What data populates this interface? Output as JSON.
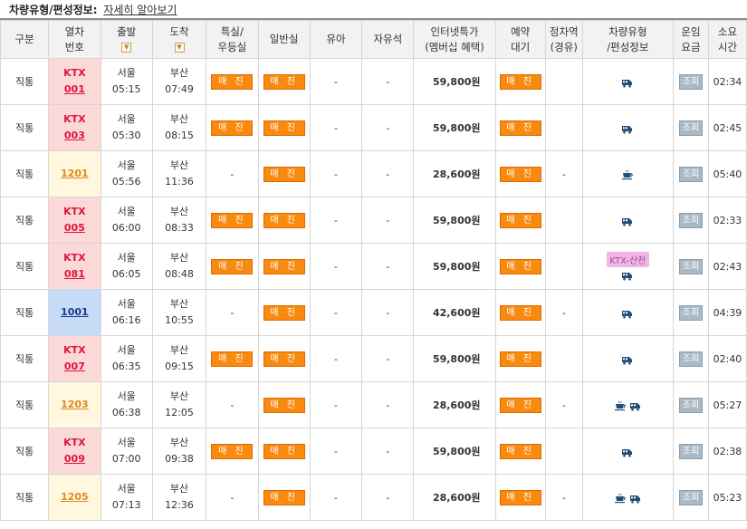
{
  "header": {
    "title": "차량유형/편성정보:",
    "detail_link": "자세히 알아보기"
  },
  "columns": {
    "gubun": "구분",
    "train_no_1": "열차",
    "train_no_2": "번호",
    "depart": "출발",
    "arrive": "도착",
    "special_1": "특실/",
    "special_2": "우등실",
    "general": "일반실",
    "infant": "유아",
    "free": "자유석",
    "internet_1": "인터넷특가",
    "internet_2": "(멤버십 혜택)",
    "reserve_1": "예약",
    "reserve_2": "대기",
    "stop_1": "정차역",
    "stop_2": "(경유)",
    "cartype_1": "차량유형",
    "cartype_2": "/편성정보",
    "fare_1": "운임",
    "fare_2": "요금",
    "time_1": "소요",
    "time_2": "시간"
  },
  "labels": {
    "sold_out": "매 진",
    "view": "조회",
    "dash": "-"
  },
  "rows": [
    {
      "type": "직통",
      "kind": "ktx",
      "prefix": "KTX",
      "no": "001",
      "dep": "서울",
      "dep_t": "05:15",
      "arr": "부산",
      "arr_t": "07:49",
      "special": "매 진",
      "general": "매 진",
      "infant": "-",
      "free": "-",
      "price": "59,800원",
      "reserve": "매 진",
      "stop": "",
      "icons": [
        "ktx-train-icon"
      ],
      "tag": "",
      "fare": "조회",
      "dur": "02:34"
    },
    {
      "type": "직통",
      "kind": "ktx",
      "prefix": "KTX",
      "no": "003",
      "dep": "서울",
      "dep_t": "05:30",
      "arr": "부산",
      "arr_t": "08:15",
      "special": "매 진",
      "general": "매 진",
      "infant": "-",
      "free": "-",
      "price": "59,800원",
      "reserve": "매 진",
      "stop": "",
      "icons": [
        "ktx-train-icon"
      ],
      "tag": "",
      "fare": "조회",
      "dur": "02:45"
    },
    {
      "type": "직통",
      "kind": "yellow",
      "prefix": "",
      "no": "1201",
      "dep": "서울",
      "dep_t": "05:56",
      "arr": "부산",
      "arr_t": "11:36",
      "special": "-",
      "general": "매 진",
      "infant": "-",
      "free": "-",
      "price": "28,600원",
      "reserve": "매 진",
      "stop": "-",
      "icons": [
        "cafe-car-icon"
      ],
      "tag": "",
      "fare": "조회",
      "dur": "05:40"
    },
    {
      "type": "직통",
      "kind": "ktx",
      "prefix": "KTX",
      "no": "005",
      "dep": "서울",
      "dep_t": "06:00",
      "arr": "부산",
      "arr_t": "08:33",
      "special": "매 진",
      "general": "매 진",
      "infant": "-",
      "free": "-",
      "price": "59,800원",
      "reserve": "매 진",
      "stop": "",
      "icons": [
        "ktx-train-icon"
      ],
      "tag": "",
      "fare": "조회",
      "dur": "02:33"
    },
    {
      "type": "직통",
      "kind": "ktx",
      "prefix": "KTX",
      "no": "081",
      "dep": "서울",
      "dep_t": "06:05",
      "arr": "부산",
      "arr_t": "08:48",
      "special": "매 진",
      "general": "매 진",
      "infant": "-",
      "free": "-",
      "price": "59,800원",
      "reserve": "매 진",
      "stop": "",
      "icons": [
        "ktx-train-icon"
      ],
      "tag": "KTX-산천",
      "fare": "조회",
      "dur": "02:43"
    },
    {
      "type": "직통",
      "kind": "blue",
      "prefix": "",
      "no": "1001",
      "dep": "서울",
      "dep_t": "06:16",
      "arr": "부산",
      "arr_t": "10:55",
      "special": "-",
      "general": "매 진",
      "infant": "-",
      "free": "-",
      "price": "42,600원",
      "reserve": "매 진",
      "stop": "-",
      "icons": [
        "ktx-train-icon"
      ],
      "tag": "",
      "fare": "조회",
      "dur": "04:39"
    },
    {
      "type": "직통",
      "kind": "ktx",
      "prefix": "KTX",
      "no": "007",
      "dep": "서울",
      "dep_t": "06:35",
      "arr": "부산",
      "arr_t": "09:15",
      "special": "매 진",
      "general": "매 진",
      "infant": "-",
      "free": "-",
      "price": "59,800원",
      "reserve": "매 진",
      "stop": "",
      "icons": [
        "ktx-train-icon"
      ],
      "tag": "",
      "fare": "조회",
      "dur": "02:40"
    },
    {
      "type": "직통",
      "kind": "yellow",
      "prefix": "",
      "no": "1203",
      "dep": "서울",
      "dep_t": "06:38",
      "arr": "부산",
      "arr_t": "12:05",
      "special": "-",
      "general": "매 진",
      "infant": "-",
      "free": "-",
      "price": "28,600원",
      "reserve": "매 진",
      "stop": "-",
      "icons": [
        "cafe-car-icon",
        "ktx-train-icon"
      ],
      "tag": "",
      "fare": "조회",
      "dur": "05:27"
    },
    {
      "type": "직통",
      "kind": "ktx",
      "prefix": "KTX",
      "no": "009",
      "dep": "서울",
      "dep_t": "07:00",
      "arr": "부산",
      "arr_t": "09:38",
      "special": "매 진",
      "general": "매 진",
      "infant": "-",
      "free": "-",
      "price": "59,800원",
      "reserve": "매 진",
      "stop": "",
      "icons": [
        "ktx-train-icon"
      ],
      "tag": "",
      "fare": "조회",
      "dur": "02:38"
    },
    {
      "type": "직통",
      "kind": "yellow",
      "prefix": "",
      "no": "1205",
      "dep": "서울",
      "dep_t": "07:13",
      "arr": "부산",
      "arr_t": "12:36",
      "special": "-",
      "general": "매 진",
      "infant": "-",
      "free": "-",
      "price": "28,600원",
      "reserve": "매 진",
      "stop": "-",
      "icons": [
        "cafe-car-icon",
        "ktx-train-icon"
      ],
      "tag": "",
      "fare": "조회",
      "dur": "05:23"
    }
  ],
  "colors": {
    "ktx_bg": "#fbd9d9",
    "ktx_text": "#e0143c",
    "mugunghwa_bg": "#fff8de",
    "mugunghwa_text": "#e08a18",
    "itx_bg": "#c6dbf6",
    "itx_text": "#1a3b8c",
    "sold_out_btn": "#f98a10",
    "view_btn": "#a9b9c6",
    "icon": "#1f4f78"
  }
}
